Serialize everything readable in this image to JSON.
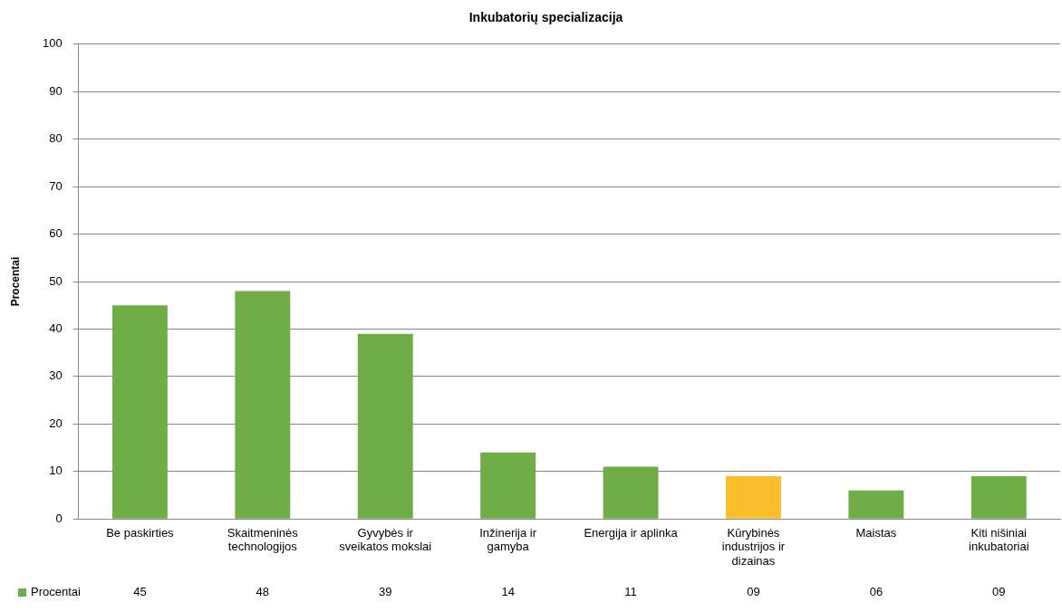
{
  "chart_data": {
    "type": "bar",
    "title": "Inkubatorių specializacija",
    "ylabel": "Procentai",
    "categories": [
      "Be paskirties",
      "Skaitmeninės technologijos",
      "Gyvybės ir sveikatos mokslai",
      "Inžinerija ir gamyba",
      "Energija ir aplinka",
      "Kūrybinės industrijos ir dizainas",
      "Maistas",
      "Kiti nišiniai inkubatoriai"
    ],
    "series": [
      {
        "name": "Procentai",
        "color": "#70ad47",
        "colors": [
          "#70ad47",
          "#70ad47",
          "#70ad47",
          "#70ad47",
          "#70ad47",
          "#fbbf2d",
          "#70ad47",
          "#70ad47"
        ],
        "values": [
          45,
          48,
          39,
          14,
          11,
          9,
          6,
          9
        ],
        "value_labels": [
          "45",
          "48",
          "39",
          "14",
          "11",
          "09",
          "06",
          "09"
        ]
      }
    ],
    "ylim": [
      0,
      100
    ],
    "yticks": [
      0,
      10,
      20,
      30,
      40,
      50,
      60,
      70,
      80,
      90,
      100
    ],
    "grid": "y",
    "legend": "bottom left"
  }
}
